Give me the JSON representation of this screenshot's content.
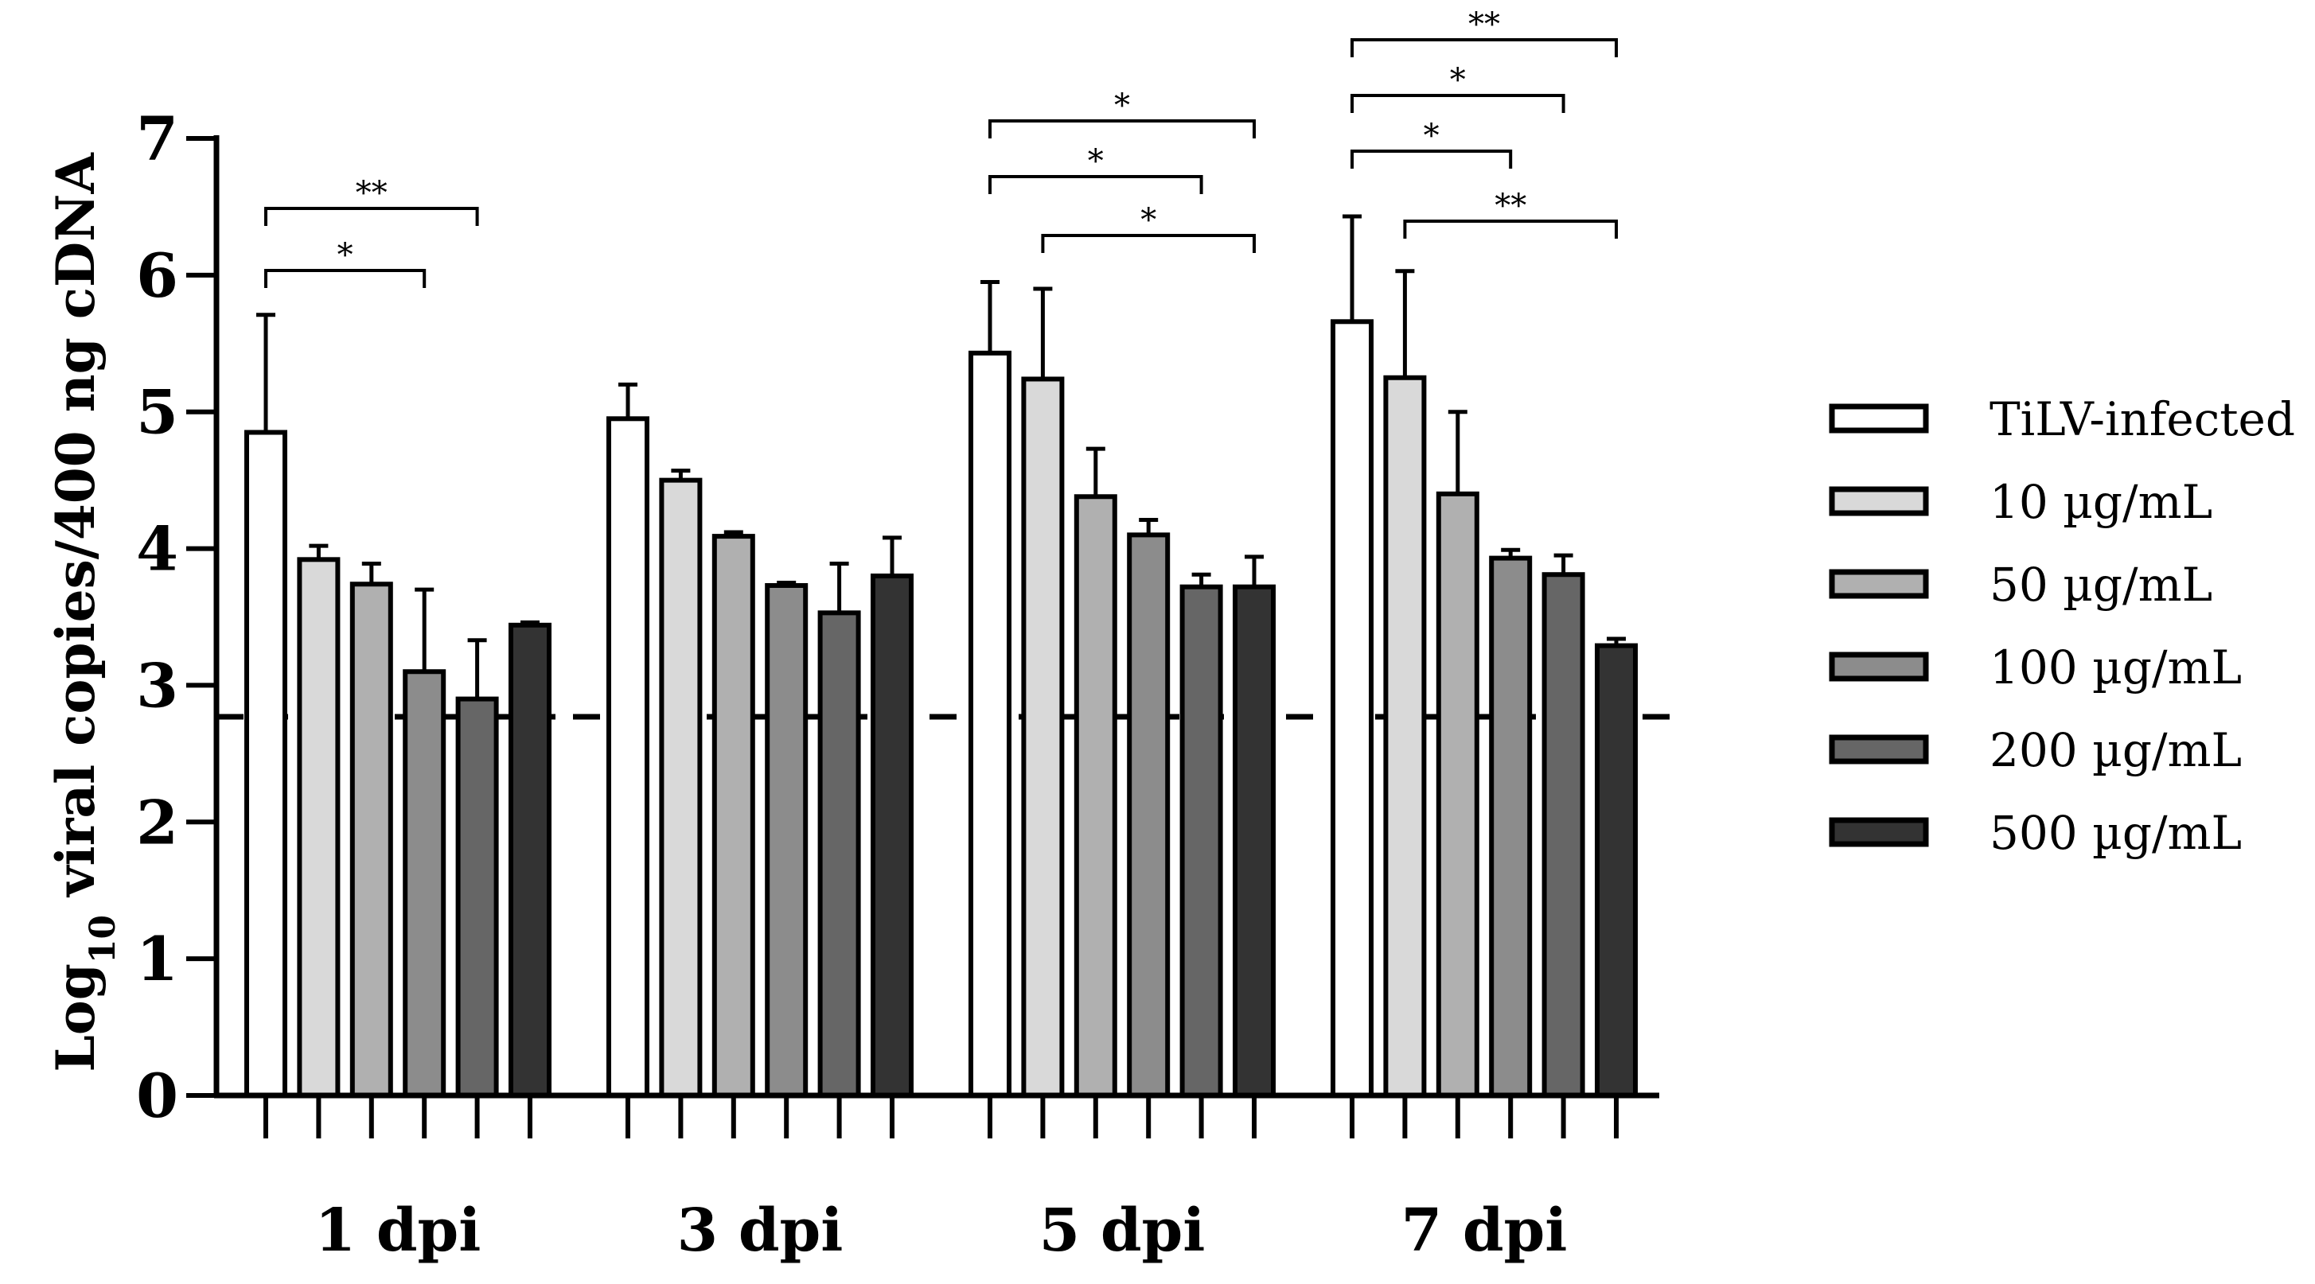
{
  "chart_data": {
    "type": "bar",
    "ylabel_main": "Log",
    "ylabel_sub": "10",
    "ylabel_rest": " viral copies/400 ng cDNA",
    "xlabel": "",
    "ylim": [
      0,
      7
    ],
    "yticks": [
      "0",
      "1",
      "2",
      "3",
      "4",
      "5",
      "6",
      "7"
    ],
    "categories": [
      "1 dpi",
      "3 dpi",
      "5 dpi",
      "7 dpi"
    ],
    "detection_limit": 2.77,
    "colors": [
      "#ffffff",
      "#d9d9d9",
      "#b0b0b0",
      "#8c8c8c",
      "#666666",
      "#333333"
    ],
    "series": [
      {
        "name": "TiLV-infected",
        "values": [
          4.85,
          4.95,
          5.43,
          5.66
        ],
        "errors": [
          0.86,
          0.25,
          0.52,
          0.77
        ]
      },
      {
        "name": "10 µg/mL",
        "values": [
          3.92,
          4.5,
          5.24,
          5.25
        ],
        "errors": [
          0.1,
          0.07,
          0.66,
          0.78
        ]
      },
      {
        "name": "50 µg/mL",
        "values": [
          3.74,
          4.09,
          4.38,
          4.4
        ],
        "errors": [
          0.15,
          0.03,
          0.35,
          0.6
        ]
      },
      {
        "name": "100 µg/mL",
        "values": [
          3.1,
          3.73,
          4.1,
          3.93
        ],
        "errors": [
          0.6,
          0.02,
          0.11,
          0.06
        ]
      },
      {
        "name": "200 µg/mL",
        "values": [
          2.9,
          3.53,
          3.72,
          3.81
        ],
        "errors": [
          0.43,
          0.36,
          0.09,
          0.14
        ]
      },
      {
        "name": "500 µg/mL",
        "values": [
          3.44,
          3.8,
          3.72,
          3.29
        ],
        "errors": [
          0.02,
          0.28,
          0.22,
          0.05
        ]
      }
    ],
    "significance": [
      {
        "category": 0,
        "from": 0,
        "to": 4,
        "label": "**"
      },
      {
        "category": 0,
        "from": 0,
        "to": 3,
        "label": "*"
      },
      {
        "category": 2,
        "from": 0,
        "to": 5,
        "label": "*"
      },
      {
        "category": 2,
        "from": 0,
        "to": 4,
        "label": "*"
      },
      {
        "category": 2,
        "from": 1,
        "to": 5,
        "label": "*"
      },
      {
        "category": 3,
        "from": 0,
        "to": 5,
        "label": "**"
      },
      {
        "category": 3,
        "from": 0,
        "to": 4,
        "label": "*"
      },
      {
        "category": 3,
        "from": 0,
        "to": 3,
        "label": "*"
      },
      {
        "category": 3,
        "from": 1,
        "to": 5,
        "label": "**"
      }
    ],
    "legend_position": "right"
  }
}
